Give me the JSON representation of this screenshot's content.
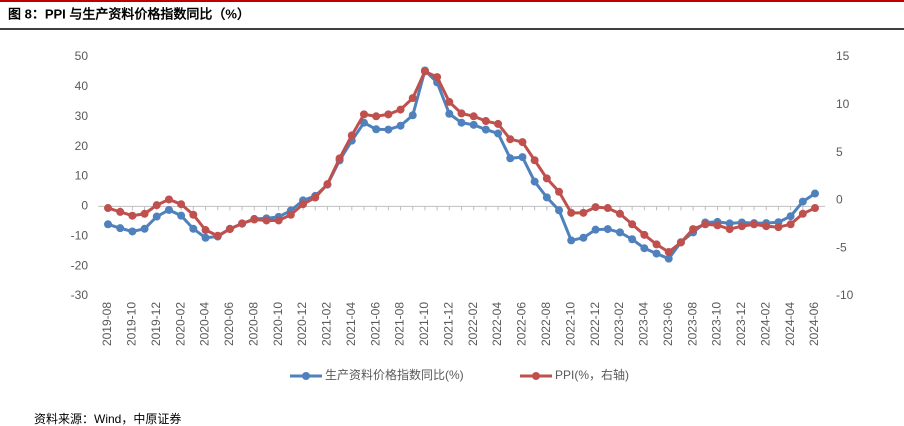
{
  "title": "图 8：PPI 与生产资料价格指数同比（%）",
  "source": "资料来源：Wind，中原证券",
  "chart_data": {
    "type": "line",
    "categories": [
      "2019-08",
      null,
      "2019-10",
      null,
      "2019-12",
      null,
      "2020-02",
      null,
      "2020-04",
      null,
      "2020-06",
      null,
      "2020-08",
      null,
      "2020-10",
      null,
      "2020-12",
      null,
      "2021-02",
      null,
      "2021-04",
      null,
      "2021-06",
      null,
      "2021-08",
      null,
      "2021-10",
      null,
      "2021-12",
      null,
      "2022-02",
      null,
      "2022-04",
      null,
      "2022-06",
      null,
      "2022-08",
      null,
      "2022-10",
      null,
      "2022-12",
      null,
      "2023-02",
      null,
      "2023-04",
      null,
      "2023-06",
      null,
      "2023-08",
      null,
      "2023-10",
      null,
      "2023-12",
      null,
      "2024-02",
      null,
      "2024-04",
      null,
      "2024-06"
    ],
    "series": [
      {
        "name": "生产资料价格指数同比(%)",
        "color": "#4f81bd",
        "values": [
          -6,
          -7.3,
          -8.4,
          -7.5,
          -3.4,
          -1.2,
          -3.1,
          -7.5,
          -10.5,
          -10.1,
          -7.5,
          -5.8,
          -4.2,
          -4.0,
          -3.5,
          -1.4,
          2,
          3.5,
          7.3,
          15.4,
          22,
          28,
          25.8,
          25.7,
          27,
          30.5,
          45.5,
          41.5,
          31,
          28,
          27.3,
          25.7,
          24.4,
          16.1,
          16.5,
          8.3,
          3,
          -1.3,
          -11.4,
          -10.5,
          -7.8,
          -7.6,
          -8.7,
          -11,
          -14,
          -15.8,
          -17.5,
          -12,
          -8.7,
          -5.4,
          -5.2,
          -5.7,
          -5.4,
          -5.6,
          -5.6,
          -5.3,
          -3.3,
          1.6,
          4.3
        ]
      },
      {
        "name": "PPI(%，右轴)",
        "color": "#c0504d",
        "axis": "y2",
        "values": [
          -0.8,
          -1.2,
          -1.6,
          -1.4,
          -0.5,
          0.1,
          -0.4,
          -1.5,
          -3.1,
          -3.7,
          -3.0,
          -2.4,
          -2.0,
          -2.1,
          -2.1,
          -1.5,
          -0.4,
          0.3,
          1.7,
          4.4,
          6.8,
          9.0,
          8.8,
          9.0,
          9.5,
          10.7,
          13.5,
          12.9,
          10.3,
          9.1,
          8.8,
          8.3,
          8.0,
          6.4,
          6.1,
          4.2,
          2.3,
          0.9,
          -1.3,
          -1.3,
          -0.7,
          -0.8,
          -1.4,
          -2.5,
          -3.6,
          -4.6,
          -5.4,
          -4.4,
          -3.0,
          -2.5,
          -2.6,
          -3.0,
          -2.7,
          -2.5,
          -2.7,
          -2.8,
          -2.5,
          -1.4,
          -0.8
        ]
      }
    ],
    "ylim": [
      -30,
      50
    ],
    "yticks": [
      -30,
      -20,
      -10,
      0,
      10,
      20,
      30,
      40,
      50
    ],
    "y2lim": [
      -10,
      15
    ],
    "y2ticks": [
      -10,
      -5,
      0,
      5,
      10,
      15
    ],
    "legend": "bottom"
  }
}
